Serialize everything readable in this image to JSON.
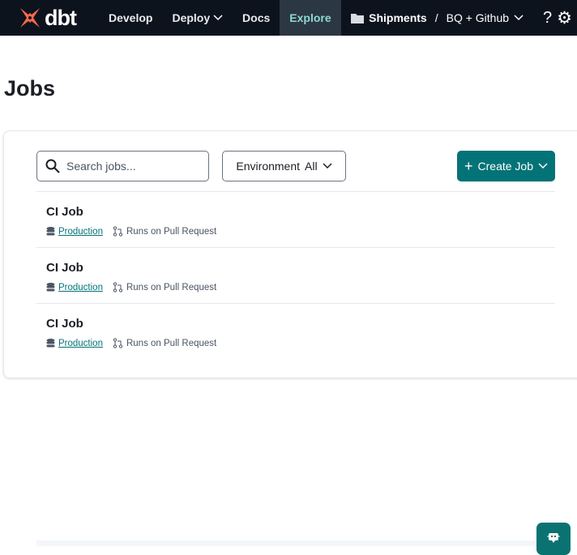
{
  "nav": {
    "brand": "dbt",
    "items": [
      {
        "label": "Develop"
      },
      {
        "label": "Deploy"
      },
      {
        "label": "Docs"
      },
      {
        "label": "Explore",
        "active": true
      }
    ],
    "project": "Shipments",
    "separator": "/",
    "environment": "BQ + Github",
    "help": "?"
  },
  "page": {
    "title": "Jobs"
  },
  "toolbar": {
    "search_placeholder": "Search jobs...",
    "env_label": "Environment",
    "env_value": "All",
    "create_label": "Create Job"
  },
  "jobs": [
    {
      "name": "CI Job",
      "environment": "Production",
      "trigger": "Runs on Pull Request"
    },
    {
      "name": "CI Job",
      "environment": "Production",
      "trigger": "Runs on Pull Request"
    },
    {
      "name": "CI Job",
      "environment": "Production",
      "trigger": "Runs on Pull Request"
    }
  ],
  "colors": {
    "accent": "#047377",
    "nav_bg": "#0d131d",
    "brand": "#ff694a"
  }
}
